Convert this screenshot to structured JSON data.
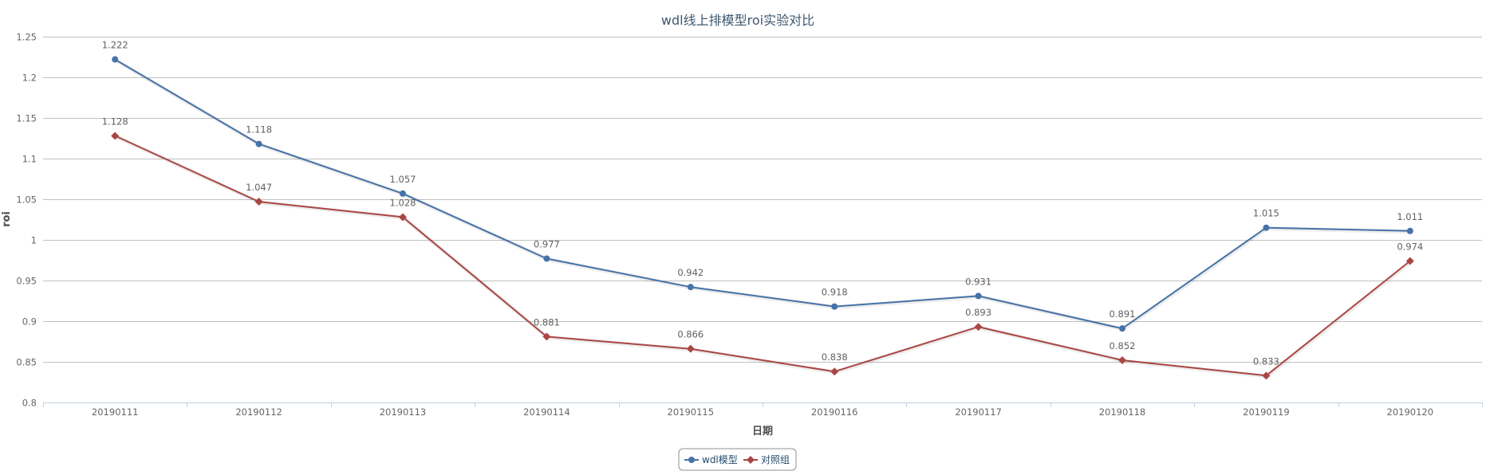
{
  "chart_data": {
    "type": "line",
    "title": "wdl线上排模型roi实验对比",
    "xlabel": "日期",
    "ylabel": "roi",
    "categories": [
      "20190111",
      "20190112",
      "20190113",
      "20190114",
      "20190115",
      "20190116",
      "20190117",
      "20190118",
      "20190119",
      "20190120"
    ],
    "ylim": [
      0.8,
      1.25
    ],
    "yticks": [
      0.8,
      0.85,
      0.9,
      0.95,
      1,
      1.05,
      1.1,
      1.15,
      1.2,
      1.25
    ],
    "grid": true,
    "legend": "bottom-center",
    "data_labels": true,
    "series": [
      {
        "name": "wdl模型",
        "color": "#4572A7",
        "marker": "circle",
        "values": [
          1.222,
          1.118,
          1.057,
          0.977,
          0.942,
          0.918,
          0.931,
          0.891,
          1.015,
          1.011
        ]
      },
      {
        "name": "对照组",
        "color": "#AA4643",
        "marker": "diamond",
        "values": [
          1.128,
          1.047,
          1.028,
          0.881,
          0.866,
          0.838,
          0.893,
          0.852,
          0.833,
          0.974
        ]
      }
    ]
  }
}
